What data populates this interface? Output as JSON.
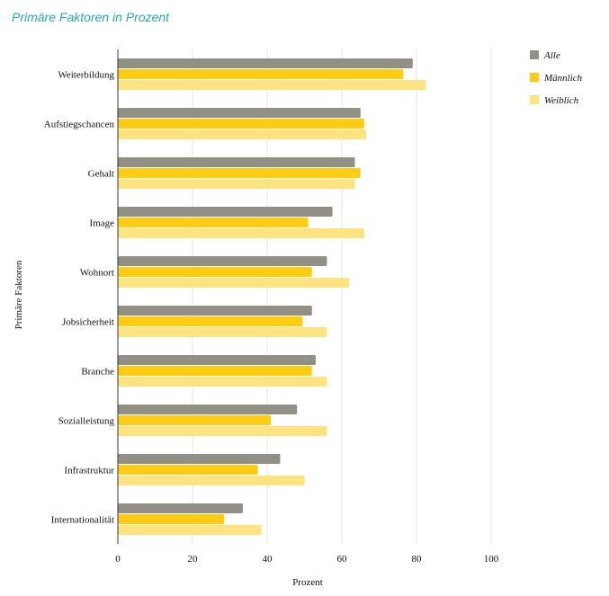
{
  "chart_data": {
    "type": "bar",
    "orientation": "horizontal",
    "title": "Primäre Faktoren in Prozent",
    "xlabel": "Prozent",
    "ylabel": "Primäre Faktoren",
    "xlim": [
      0,
      100
    ],
    "xticks": [
      0,
      20,
      40,
      60,
      80,
      100
    ],
    "grid": "vertical",
    "legend_position": "right",
    "categories": [
      "Weiterbildung",
      "Aufstiegschancen",
      "Gehalt",
      "Image",
      "Wohnort",
      "Jobsicherheit",
      "Branche",
      "Sozialleistung",
      "Infrastruktur",
      "Internationalität"
    ],
    "series": [
      {
        "name": "Alle",
        "color": "#929084",
        "values": [
          79,
          65,
          63.5,
          57.5,
          56,
          52,
          53,
          48,
          43.5,
          33.5
        ]
      },
      {
        "name": "Männlich",
        "color": "#fecd13",
        "values": [
          76.5,
          66,
          65,
          51,
          52,
          49.5,
          52,
          41,
          37.5,
          28.5
        ]
      },
      {
        "name": "Weiblich",
        "color": "#fee381",
        "values": [
          82.5,
          66.5,
          63.5,
          66,
          62,
          56,
          56,
          56,
          50,
          38.5
        ]
      }
    ]
  }
}
